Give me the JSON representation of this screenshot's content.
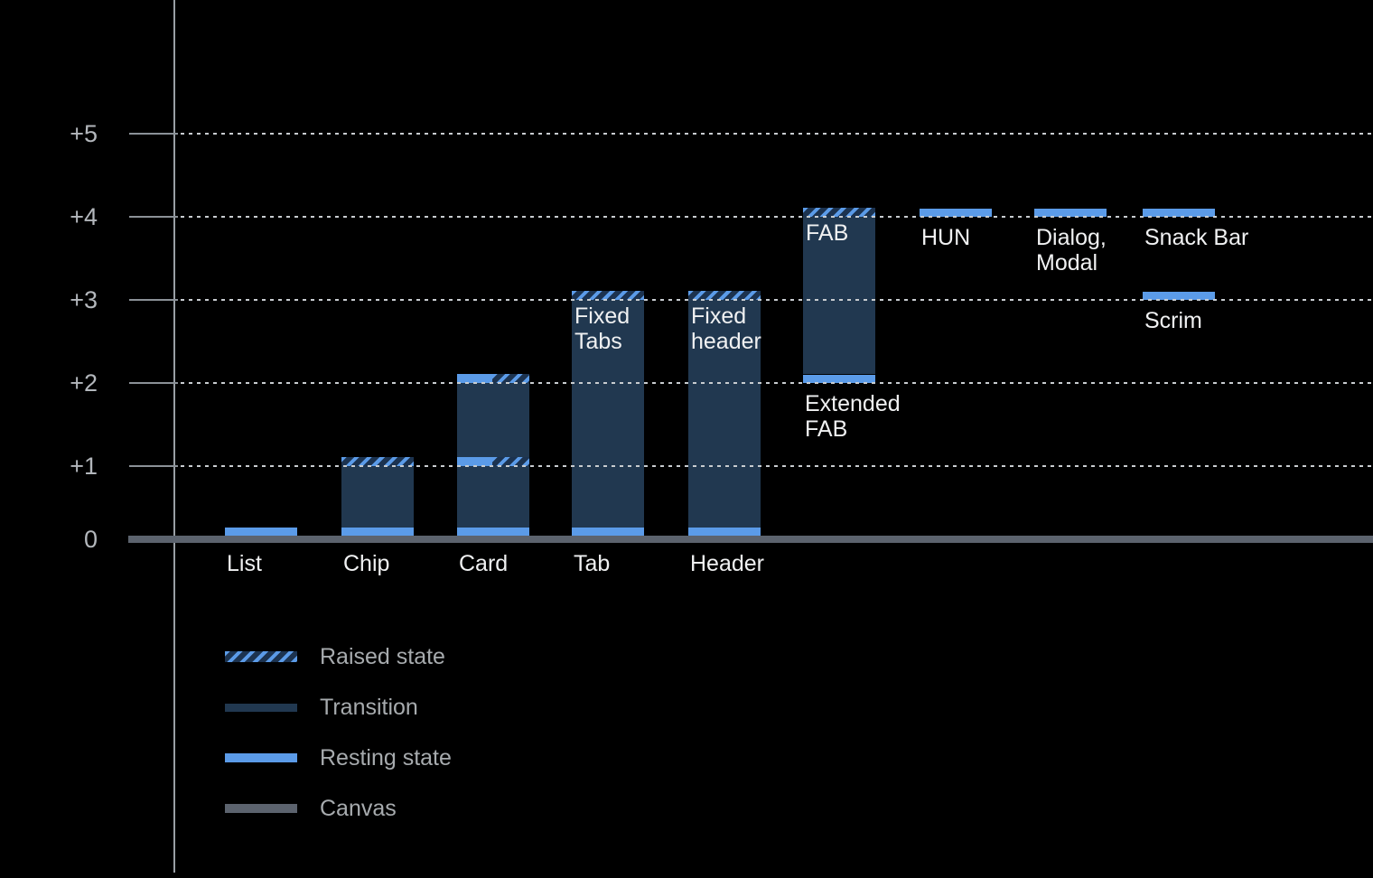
{
  "chart_data": {
    "type": "bar",
    "title": "",
    "xlabel": "",
    "ylabel": "",
    "y_axis": {
      "tick_labels": [
        "0",
        "+1",
        "+2",
        "+3",
        "+4",
        "+5"
      ],
      "range": [
        0,
        5
      ],
      "grid": "dotted"
    },
    "legend": {
      "position": "bottom-left",
      "items": [
        {
          "label": "Raised state",
          "swatch": "raised"
        },
        {
          "label": "Transition",
          "swatch": "transition"
        },
        {
          "label": "Resting state",
          "swatch": "resting"
        },
        {
          "label": "Canvas",
          "swatch": "canvas"
        }
      ]
    },
    "colors": {
      "background": "#000000",
      "resting": "#5b9be8",
      "transition": "#213850",
      "hatch_bg": "#1c3350",
      "canvas": "#5c636e",
      "axis": "#999fa5",
      "tick_line": "#8b9197",
      "grid_dots": "#c8ccd0",
      "tick_text": "#b3b7bc",
      "label_text": "#f0f1f2",
      "legend_text": "#a7abae"
    },
    "columns": [
      {
        "id": "list",
        "col": 0,
        "axis_label": "List",
        "segments": [
          {
            "kind": "resting",
            "level": 0
          }
        ]
      },
      {
        "id": "chip",
        "col": 1,
        "axis_label": "Chip",
        "segments": [
          {
            "kind": "transition",
            "from": 0,
            "to": 1
          },
          {
            "kind": "resting",
            "level": 0
          },
          {
            "kind": "raised",
            "level": 1
          }
        ]
      },
      {
        "id": "card",
        "col": 2,
        "axis_label": "Card",
        "segments": [
          {
            "kind": "transition",
            "from": 0,
            "to": 1
          },
          {
            "kind": "transition",
            "from": 1,
            "to": 2
          },
          {
            "kind": "resting",
            "level": 0
          },
          {
            "kind": "split",
            "level": 1
          },
          {
            "kind": "split",
            "level": 2
          }
        ]
      },
      {
        "id": "tab",
        "col": 3,
        "axis_label": "Tab",
        "inner_label": [
          "Fixed",
          "Tabs"
        ],
        "segments": [
          {
            "kind": "transition",
            "from": 0,
            "to": 3
          },
          {
            "kind": "resting",
            "level": 0
          },
          {
            "kind": "raised",
            "level": 3
          }
        ]
      },
      {
        "id": "header",
        "col": 4,
        "axis_label": "Header",
        "inner_label": [
          "Fixed",
          "header"
        ],
        "segments": [
          {
            "kind": "transition",
            "from": 0,
            "to": 3
          },
          {
            "kind": "resting",
            "level": 0
          },
          {
            "kind": "raised",
            "level": 3
          }
        ]
      },
      {
        "id": "fab",
        "col": 5,
        "inner_label": [
          "FAB"
        ],
        "below_label": [
          "Extended",
          "FAB"
        ],
        "below_level": 2,
        "segments": [
          {
            "kind": "transition",
            "from": 2,
            "to": 4
          },
          {
            "kind": "resting",
            "level": 2
          },
          {
            "kind": "raised",
            "level": 4
          }
        ]
      },
      {
        "id": "hun",
        "col": 6,
        "below_label": [
          "HUN"
        ],
        "below_level": 4,
        "segments": [
          {
            "kind": "resting",
            "level": 4
          }
        ]
      },
      {
        "id": "dialog-modal",
        "col": 7,
        "below_label": [
          "Dialog,",
          "Modal"
        ],
        "below_level": 4,
        "segments": [
          {
            "kind": "resting",
            "level": 4
          }
        ]
      },
      {
        "id": "snack-bar",
        "col": 8,
        "below_label": [
          "Snack Bar"
        ],
        "below_level": 4,
        "segments": [
          {
            "kind": "resting",
            "level": 4
          }
        ]
      },
      {
        "id": "scrim",
        "col": 8,
        "below_label": [
          "Scrim"
        ],
        "below_level": 3,
        "segments": [
          {
            "kind": "resting",
            "level": 3
          }
        ]
      }
    ]
  }
}
